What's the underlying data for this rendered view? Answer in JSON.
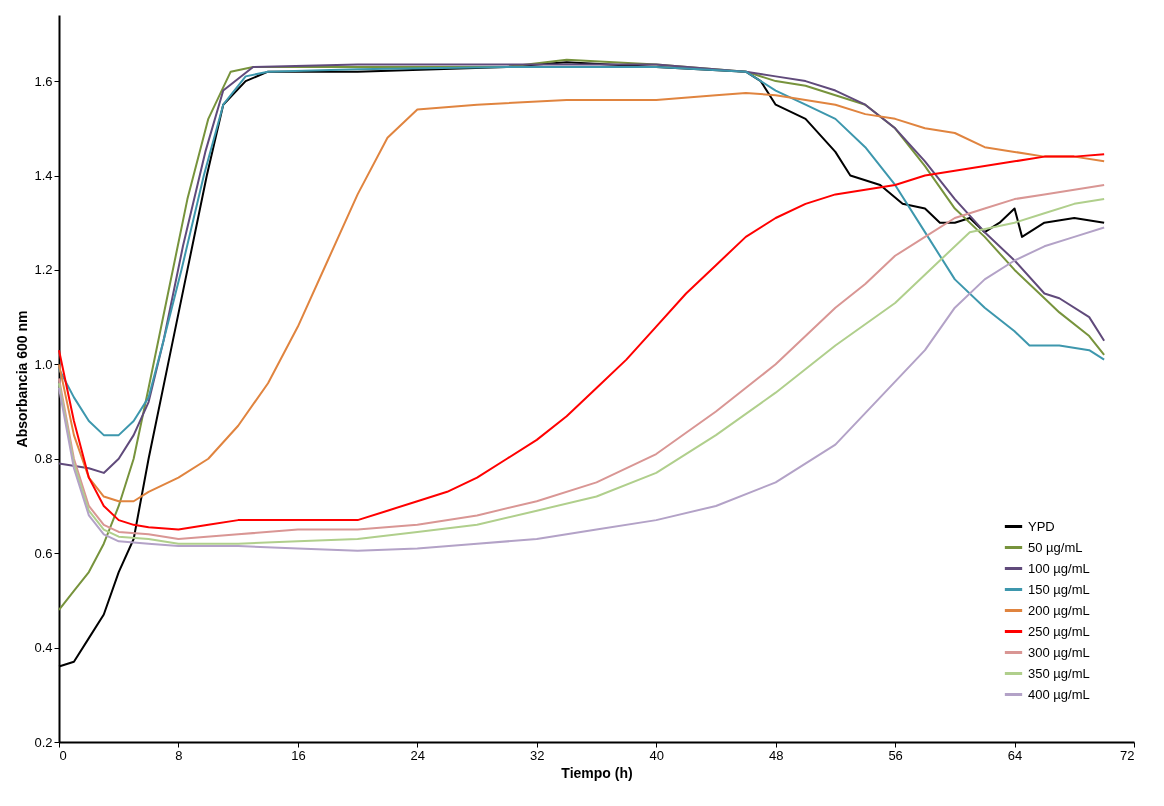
{
  "chart_data": {
    "type": "line",
    "xlabel": "Tiempo  (h)",
    "ylabel": "Absorbancia 600 nm",
    "xlim": [
      0,
      72
    ],
    "xticks": [
      0,
      8,
      16,
      24,
      32,
      40,
      48,
      56,
      64,
      72
    ],
    "ylim": [
      0.2,
      1.74
    ],
    "yticks": [
      0.2,
      0.4,
      0.6,
      0.8,
      {
        "value": 1,
        "label": "1.0"
      },
      1.2,
      1.4,
      1.6
    ],
    "grid": false,
    "legend": "bottom right",
    "series": [
      {
        "name": "YPD",
        "color": "#000000",
        "x": [
          0,
          1,
          2,
          3,
          4,
          5,
          6,
          7.3,
          8.6,
          9.9,
          11,
          12.5,
          14,
          20,
          30,
          34,
          40,
          46,
          47,
          48,
          50,
          52,
          53,
          55,
          56.5,
          58,
          59,
          60,
          61,
          62,
          63,
          64,
          64.5,
          66,
          68,
          70
        ],
        "values": [
          0.36,
          0.37,
          0.42,
          0.47,
          0.56,
          0.63,
          0.8,
          1.0,
          1.2,
          1.4,
          1.55,
          1.6,
          1.62,
          1.62,
          1.63,
          1.64,
          1.63,
          1.62,
          1.6,
          1.55,
          1.52,
          1.45,
          1.4,
          1.38,
          1.34,
          1.33,
          1.3,
          1.3,
          1.31,
          1.28,
          1.3,
          1.33,
          1.27,
          1.3,
          1.31,
          1.3
        ]
      },
      {
        "name": "50  µg/mL",
        "color": "#77933c",
        "x": [
          0,
          1,
          2,
          3,
          4,
          5,
          6,
          7.3,
          8.6,
          10,
          11.5,
          13,
          20,
          30,
          34,
          40,
          46,
          48,
          50,
          52,
          54,
          56,
          58,
          60,
          62,
          64,
          66,
          67,
          69,
          70
        ],
        "values": [
          0.48,
          0.52,
          0.56,
          0.62,
          0.7,
          0.8,
          0.95,
          1.15,
          1.35,
          1.52,
          1.62,
          1.63,
          1.63,
          1.63,
          1.645,
          1.635,
          1.62,
          1.6,
          1.59,
          1.57,
          1.55,
          1.5,
          1.42,
          1.33,
          1.27,
          1.2,
          1.14,
          1.11,
          1.06,
          1.02
        ]
      },
      {
        "name": "100  µg/mL",
        "color": "#604a7b",
        "x": [
          0,
          2,
          3,
          4,
          5,
          6,
          7,
          8.3,
          9.8,
          11,
          13,
          20,
          30,
          40,
          46,
          48,
          50,
          52,
          54,
          56,
          58,
          60,
          62,
          64,
          66,
          67,
          69,
          70
        ],
        "values": [
          0.79,
          0.78,
          0.77,
          0.8,
          0.85,
          0.92,
          1.05,
          1.25,
          1.45,
          1.58,
          1.63,
          1.635,
          1.635,
          1.635,
          1.62,
          1.61,
          1.6,
          1.58,
          1.55,
          1.5,
          1.43,
          1.35,
          1.28,
          1.22,
          1.15,
          1.14,
          1.1,
          1.05
        ]
      },
      {
        "name": "150  µg/mL",
        "color": "#3d97ad",
        "x": [
          0,
          1,
          2,
          3,
          4,
          5,
          6,
          7,
          8.2,
          9.7,
          11,
          12.5,
          14,
          20,
          30,
          40,
          46,
          48,
          50,
          52,
          54,
          56,
          58,
          60,
          62,
          64,
          65,
          67,
          69,
          70
        ],
        "values": [
          0.99,
          0.93,
          0.88,
          0.85,
          0.85,
          0.88,
          0.93,
          1.05,
          1.2,
          1.4,
          1.55,
          1.61,
          1.62,
          1.625,
          1.63,
          1.63,
          1.62,
          1.58,
          1.55,
          1.52,
          1.46,
          1.38,
          1.28,
          1.18,
          1.12,
          1.07,
          1.04,
          1.04,
          1.03,
          1.01
        ]
      },
      {
        "name": "200  µg/mL",
        "color": "#e0843f",
        "x": [
          0,
          1,
          2,
          3,
          4,
          5,
          6,
          8,
          10,
          12,
          14,
          16,
          18,
          20,
          22,
          24,
          28,
          34,
          40,
          44,
          46,
          48,
          50,
          52,
          54,
          56,
          58,
          60,
          62,
          64,
          66,
          68,
          70
        ],
        "values": [
          1.0,
          0.85,
          0.76,
          0.72,
          0.71,
          0.71,
          0.73,
          0.76,
          0.8,
          0.87,
          0.96,
          1.08,
          1.22,
          1.36,
          1.48,
          1.54,
          1.55,
          1.56,
          1.56,
          1.57,
          1.575,
          1.57,
          1.56,
          1.55,
          1.53,
          1.52,
          1.5,
          1.49,
          1.46,
          1.45,
          1.44,
          1.44,
          1.43
        ]
      },
      {
        "name": "250  µg/mL",
        "color": "#ff0000",
        "x": [
          0,
          1,
          2,
          3,
          4,
          5,
          6,
          8,
          10,
          12,
          16,
          20,
          22,
          24,
          26,
          28,
          30,
          32,
          34,
          36,
          38,
          40,
          42,
          44,
          46,
          48,
          50,
          52,
          54,
          56,
          58,
          60,
          62,
          64,
          66,
          68,
          70
        ],
        "values": [
          1.03,
          0.88,
          0.76,
          0.7,
          0.67,
          0.66,
          0.655,
          0.65,
          0.66,
          0.67,
          0.67,
          0.67,
          0.69,
          0.71,
          0.73,
          0.76,
          0.8,
          0.84,
          0.89,
          0.95,
          1.01,
          1.08,
          1.15,
          1.21,
          1.27,
          1.31,
          1.34,
          1.36,
          1.37,
          1.38,
          1.4,
          1.41,
          1.42,
          1.43,
          1.44,
          1.44,
          1.445
        ]
      },
      {
        "name": "300  µg/mL",
        "color": "#d99694",
        "x": [
          0,
          1,
          2,
          3,
          4,
          6,
          8,
          12,
          16,
          20,
          24,
          28,
          32,
          36,
          40,
          44,
          48,
          52,
          54,
          56,
          58,
          60,
          62,
          64,
          66,
          68,
          70
        ],
        "values": [
          0.97,
          0.8,
          0.7,
          0.66,
          0.645,
          0.64,
          0.63,
          0.64,
          0.65,
          0.65,
          0.66,
          0.68,
          0.71,
          0.75,
          0.81,
          0.9,
          1.0,
          1.12,
          1.17,
          1.23,
          1.27,
          1.31,
          1.33,
          1.35,
          1.36,
          1.37,
          1.38
        ]
      },
      {
        "name": "350  µg/mL",
        "color": "#b0cf8c",
        "x": [
          0,
          1,
          2,
          3,
          4,
          6,
          8,
          12,
          16,
          20,
          24,
          28,
          32,
          36,
          40,
          44,
          48,
          52,
          56,
          59,
          61,
          64,
          66,
          68,
          70
        ],
        "values": [
          0.96,
          0.79,
          0.69,
          0.65,
          0.635,
          0.63,
          0.62,
          0.62,
          0.625,
          0.63,
          0.645,
          0.66,
          0.69,
          0.72,
          0.77,
          0.85,
          0.94,
          1.04,
          1.13,
          1.22,
          1.28,
          1.3,
          1.32,
          1.34,
          1.35
        ]
      },
      {
        "name": "400  µg/mL",
        "color": "#b3a2c7",
        "x": [
          0,
          1,
          2,
          3,
          4,
          6,
          8,
          12,
          16,
          20,
          24,
          28,
          32,
          36,
          40,
          44,
          48,
          52,
          55,
          58,
          60,
          62,
          64,
          66,
          68,
          70
        ],
        "values": [
          0.95,
          0.78,
          0.68,
          0.64,
          0.625,
          0.62,
          0.615,
          0.615,
          0.61,
          0.605,
          0.61,
          0.62,
          0.63,
          0.65,
          0.67,
          0.7,
          0.75,
          0.83,
          0.93,
          1.03,
          1.12,
          1.18,
          1.22,
          1.25,
          1.27,
          1.29
        ]
      }
    ]
  }
}
